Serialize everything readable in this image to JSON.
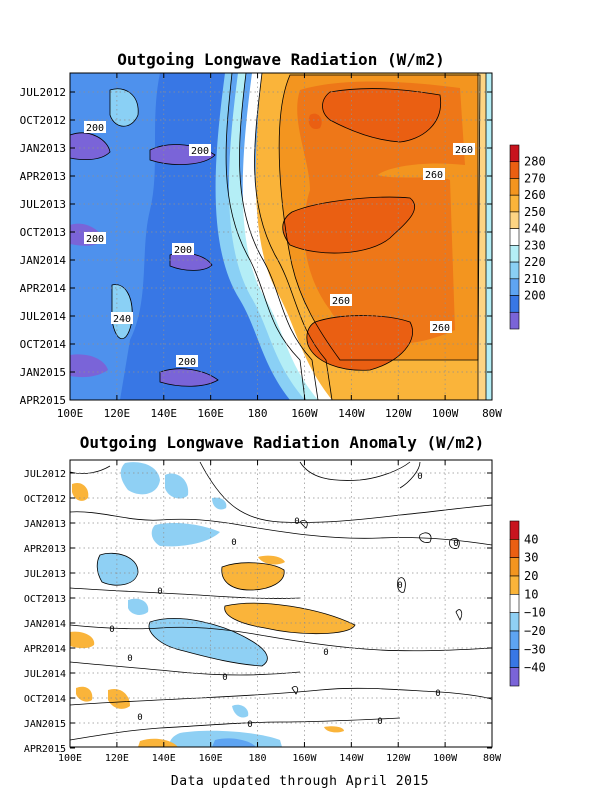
{
  "footer": "Data updated through April 2015",
  "chart_data": [
    {
      "type": "heatmap",
      "title": "Outgoing Longwave Radiation (W/m2)",
      "x_ticks": [
        "100E",
        "120E",
        "140E",
        "160E",
        "180",
        "160W",
        "140W",
        "120W",
        "100W",
        "80W"
      ],
      "y_ticks": [
        "JUL2012",
        "OCT2012",
        "JAN2013",
        "APR2013",
        "JUL2013",
        "OCT2013",
        "JAN2014",
        "APR2014",
        "JUL2014",
        "OCT2014",
        "JAN2015",
        "APR2015"
      ],
      "colorbar": {
        "labels": [
          "280",
          "270",
          "260",
          "250",
          "240",
          "230",
          "220",
          "210",
          "200"
        ],
        "colors": [
          "#c8141e",
          "#ea5f12",
          "#f3951f",
          "#fab43a",
          "#fdd483",
          "#ffffff",
          "#b4eef6",
          "#8ad0f5",
          "#5ea4f2",
          "#3877e5",
          "#7a64d8"
        ]
      },
      "contour_labels": [
        "200",
        "200",
        "200",
        "200",
        "200",
        "240",
        "260",
        "260",
        "260",
        "260"
      ],
      "grid": true
    },
    {
      "type": "heatmap",
      "title": "Outgoing Longwave Radiation Anomaly (W/m2)",
      "x_ticks": [
        "100E",
        "120E",
        "140E",
        "160E",
        "180",
        "160W",
        "140W",
        "120W",
        "100W",
        "80W"
      ],
      "y_ticks": [
        "JUL2012",
        "OCT2012",
        "JAN2013",
        "APR2013",
        "JUL2013",
        "OCT2013",
        "JAN2014",
        "APR2014",
        "JUL2014",
        "OCT2014",
        "JAN2015",
        "APR2015"
      ],
      "colorbar": {
        "labels": [
          "40",
          "30",
          "20",
          "10",
          "−10",
          "−20",
          "−30",
          "−40"
        ],
        "colors": [
          "#c8141e",
          "#ea5f12",
          "#f3951f",
          "#fab43a",
          "#ffffff",
          "#8fd0f4",
          "#5ea4f2",
          "#3877e5",
          "#7a64d8"
        ]
      },
      "contour_labels": [
        "0",
        "0",
        "0",
        "0",
        "0",
        "0",
        "0",
        "0",
        "0",
        "0",
        "0",
        "0",
        "0",
        "0"
      ],
      "grid": true
    }
  ]
}
